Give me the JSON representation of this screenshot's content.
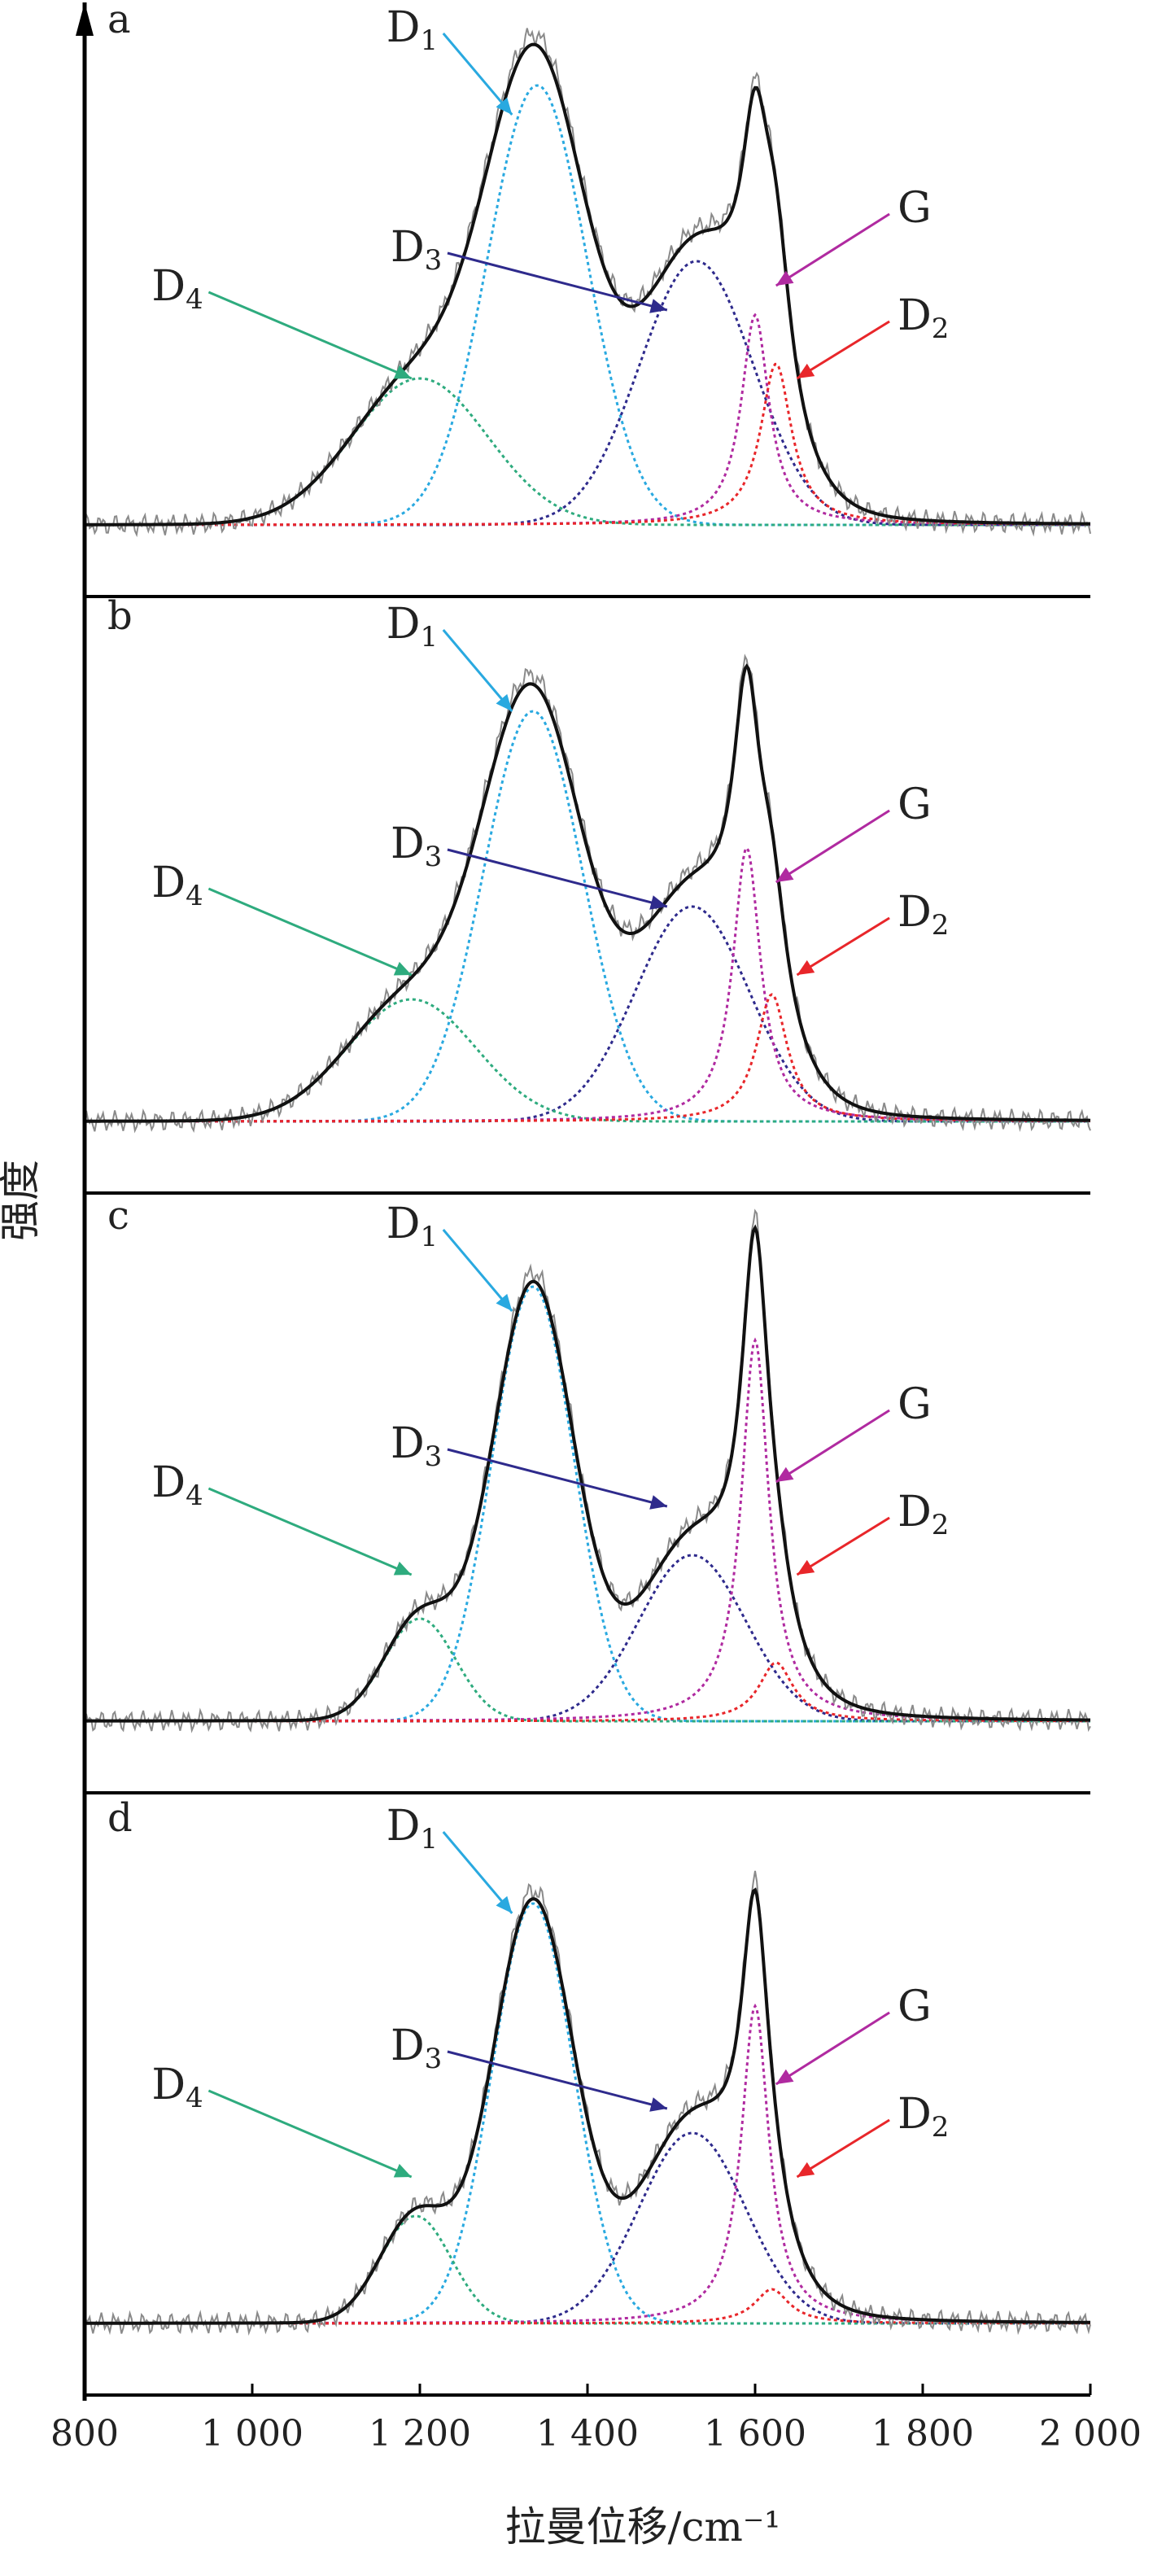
{
  "figure": {
    "xlabel": "拉曼位移/cm⁻¹",
    "ylabel": "强度"
  },
  "chart_data": [
    {
      "type": "line",
      "panel_label": "a",
      "xlim": [
        800,
        2000
      ],
      "ylim": [
        0,
        1.07
      ],
      "xticks": [
        800,
        1000,
        1200,
        1400,
        1600,
        1800,
        2000
      ],
      "tick_labels": [
        "800",
        "1 000",
        "1 200",
        "1 400",
        "1 600",
        "1 800",
        "2 000"
      ],
      "bands": [
        {
          "name": "D1",
          "type": "gauss",
          "center": 1340,
          "height": 0.9,
          "width": 140,
          "color": "#29a9e0",
          "label": {
            "base": "D",
            "sub": "1"
          }
        },
        {
          "name": "D3",
          "type": "gauss",
          "center": 1530,
          "height": 0.54,
          "width": 160,
          "color": "#2e2a8c",
          "label": {
            "base": "D",
            "sub": "3"
          }
        },
        {
          "name": "D4",
          "type": "gauss",
          "center": 1200,
          "height": 0.3,
          "width": 190,
          "color": "#2eab7e",
          "label": {
            "base": "D",
            "sub": "4"
          }
        },
        {
          "name": "G",
          "type": "lorentz",
          "center": 1600,
          "height": 0.43,
          "width": 40,
          "color": "#b02aa0",
          "label": {
            "base": "G",
            "sub": ""
          }
        },
        {
          "name": "D2",
          "type": "lorentz",
          "center": 1625,
          "height": 0.33,
          "width": 45,
          "color": "#e8262a",
          "label": {
            "base": "D",
            "sub": "2"
          }
        }
      ]
    },
    {
      "type": "line",
      "panel_label": "b",
      "xlim": [
        800,
        2000
      ],
      "ylim": [
        0,
        1.07
      ],
      "bands": [
        {
          "name": "D1",
          "type": "gauss",
          "center": 1335,
          "height": 0.84,
          "width": 140,
          "color": "#29a9e0",
          "label": {
            "base": "D",
            "sub": "1"
          }
        },
        {
          "name": "D3",
          "type": "gauss",
          "center": 1525,
          "height": 0.44,
          "width": 160,
          "color": "#2e2a8c",
          "label": {
            "base": "D",
            "sub": "3"
          }
        },
        {
          "name": "D4",
          "type": "gauss",
          "center": 1190,
          "height": 0.25,
          "width": 180,
          "color": "#2eab7e",
          "label": {
            "base": "D",
            "sub": "4"
          }
        },
        {
          "name": "G",
          "type": "lorentz",
          "center": 1590,
          "height": 0.56,
          "width": 40,
          "color": "#b02aa0",
          "label": {
            "base": "G",
            "sub": ""
          }
        },
        {
          "name": "D2",
          "type": "lorentz",
          "center": 1620,
          "height": 0.26,
          "width": 45,
          "color": "#e8262a",
          "label": {
            "base": "D",
            "sub": "2"
          }
        }
      ]
    },
    {
      "type": "line",
      "panel_label": "c",
      "xlim": [
        800,
        2000
      ],
      "ylim": [
        0,
        1.07
      ],
      "bands": [
        {
          "name": "D1",
          "type": "gauss",
          "center": 1335,
          "height": 0.89,
          "width": 115,
          "color": "#29a9e0",
          "label": {
            "base": "D",
            "sub": "1"
          }
        },
        {
          "name": "D3",
          "type": "gauss",
          "center": 1525,
          "height": 0.34,
          "width": 150,
          "color": "#2e2a8c",
          "label": {
            "base": "D",
            "sub": "3"
          }
        },
        {
          "name": "D4",
          "type": "gauss",
          "center": 1200,
          "height": 0.21,
          "width": 100,
          "color": "#2eab7e",
          "label": {
            "base": "D",
            "sub": "4"
          }
        },
        {
          "name": "G",
          "type": "lorentz",
          "center": 1600,
          "height": 0.78,
          "width": 40,
          "color": "#b02aa0",
          "label": {
            "base": "G",
            "sub": ""
          }
        },
        {
          "name": "D2",
          "type": "lorentz",
          "center": 1625,
          "height": 0.12,
          "width": 50,
          "color": "#e8262a",
          "label": {
            "base": "D",
            "sub": "2"
          }
        }
      ]
    },
    {
      "type": "line",
      "panel_label": "d",
      "xlim": [
        800,
        2000
      ],
      "ylim": [
        0,
        1.07
      ],
      "bands": [
        {
          "name": "D1",
          "type": "gauss",
          "center": 1335,
          "height": 0.86,
          "width": 115,
          "color": "#29a9e0",
          "label": {
            "base": "D",
            "sub": "1"
          }
        },
        {
          "name": "D3",
          "type": "gauss",
          "center": 1525,
          "height": 0.39,
          "width": 150,
          "color": "#2e2a8c",
          "label": {
            "base": "D",
            "sub": "3"
          }
        },
        {
          "name": "D4",
          "type": "gauss",
          "center": 1195,
          "height": 0.22,
          "width": 100,
          "color": "#2eab7e",
          "label": {
            "base": "D",
            "sub": "4"
          }
        },
        {
          "name": "G",
          "type": "lorentz",
          "center": 1600,
          "height": 0.65,
          "width": 40,
          "color": "#b02aa0",
          "label": {
            "base": "G",
            "sub": ""
          }
        },
        {
          "name": "D2",
          "type": "lorentz",
          "center": 1620,
          "height": 0.07,
          "width": 50,
          "color": "#e8262a",
          "label": {
            "base": "D",
            "sub": "2"
          }
        }
      ]
    }
  ]
}
